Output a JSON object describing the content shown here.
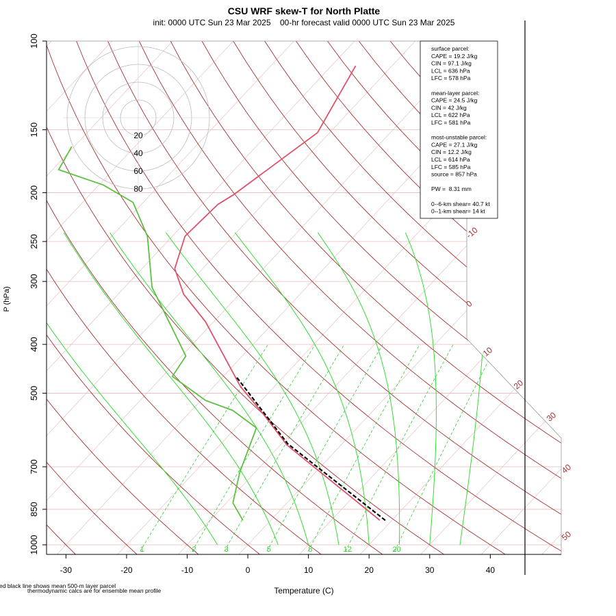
{
  "chart_data": {
    "type": "skewt",
    "title": "CSU WRF skew-T for North Platte",
    "subtitle": "init: 0000 UTC Sun 23 Mar 2025    00-hr forecast valid 0000 UTC Sun 23 Mar 2025",
    "xlabel": "Temperature (C)",
    "ylabel": "P (hPa)",
    "ylim": [
      1000,
      100
    ],
    "yticks": [
      100,
      150,
      200,
      250,
      300,
      400,
      500,
      700,
      850,
      1000
    ],
    "log_y": true,
    "xlim": [
      -33.2,
      51.7
    ],
    "xticks": [
      -30,
      -20,
      -10,
      0,
      10,
      20,
      30,
      40
    ],
    "isotherm_labels": [
      -10,
      0,
      10,
      20,
      30,
      40,
      50
    ],
    "mixing_ratio_labels": [
      1,
      2,
      3,
      5,
      8,
      12,
      20
    ],
    "hodograph_rings": [
      20,
      40,
      60,
      80
    ],
    "series": [
      {
        "color": "#e0506a",
        "y": [
          894,
          634,
          550,
          485,
          361,
          318,
          283,
          244,
          211,
          202,
          152,
          112
        ],
        "values": [
          18.0,
          -8.9,
          -17.6,
          -25.6,
          -41.3,
          -49.2,
          -54.6,
          -57.9,
          -57.4,
          -56.3,
          -52.0,
          -56.0
        ]
      },
      {
        "color": "#5cc040",
        "y": [
          894,
          826,
          718,
          586,
          541,
          517,
          463,
          422,
          308,
          244,
          209,
          193,
          180,
          162
        ],
        "values": [
          -4.6,
          -8.9,
          -12.5,
          -16.6,
          -23.2,
          -29.2,
          -38.4,
          -39.3,
          -55.5,
          -64.1,
          -71.7,
          -79.3,
          -89.0,
          -90.4
        ]
      },
      {
        "color": "#000000",
        "dash": true,
        "y": [
          894,
          630,
          463
        ],
        "values": [
          18.9,
          -9.0,
          -27.9
        ]
      }
    ],
    "info_box": [
      [
        "surface parcel:",
        "CAPE = 19.2 J/kg",
        "CIN = 97.1 J/kg",
        "LCL = 636 hPa",
        "LFC = 578 hPa"
      ],
      [
        "mean-layer parcel:",
        "CAPE = 24.5 J/kg",
        "CIN = 42 J/kg",
        "LCL = 622 hPa",
        "LFC = 581 hPa"
      ],
      [
        "most-unstable parcel:",
        "CAPE = 27.1 J/kg",
        "CIN = 12.2 J/kg",
        "LCL = 614 hPa",
        "LFC = 585 hPa",
        "source = 857 hPa"
      ],
      [
        "PW =  8.31 mm"
      ],
      [
        "0--6-km shear= 40.7 kt",
        "0--1-km shear= 14 kt"
      ]
    ],
    "footnotes": [
      "ed black line shows mean 500-m layer parcel",
      "thermodynamic calcs are for ensemble mean profile"
    ]
  }
}
